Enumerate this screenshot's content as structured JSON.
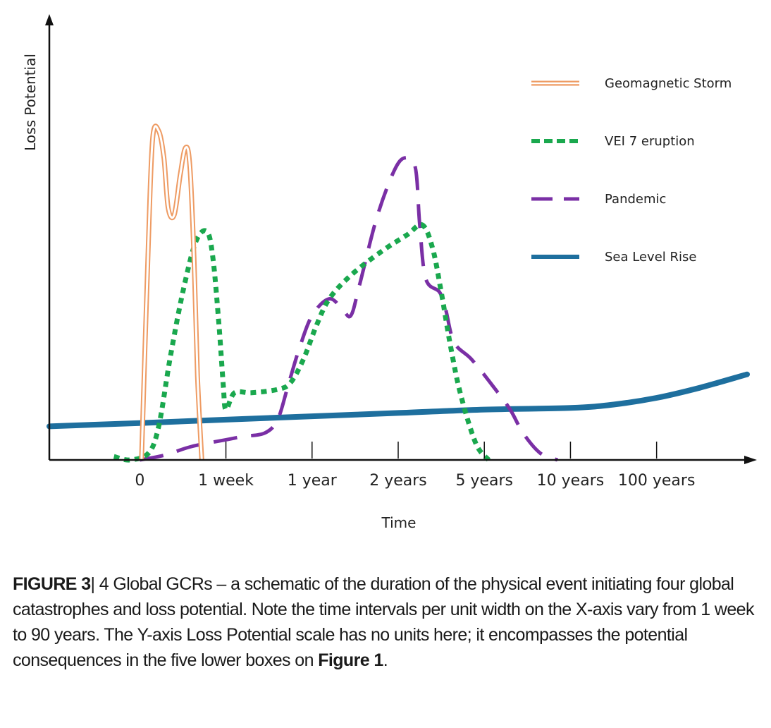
{
  "chart_data": {
    "type": "line",
    "title": "",
    "xlabel": "Time",
    "ylabel": "Loss Potential",
    "x_ticks": [
      "0",
      "1 week",
      "1 year",
      "2 years",
      "5 years",
      "10 years",
      "100 years"
    ],
    "x_range": [
      -1.05,
      7.05
    ],
    "ylim": [
      0,
      100
    ],
    "grid": false,
    "legend_position": "top-right",
    "series": [
      {
        "name": "Geomagnetic Storm",
        "style": "double-line",
        "color": "#ee9b63",
        "points": [
          [
            0.02,
            0
          ],
          [
            0.1,
            65
          ],
          [
            0.15,
            96
          ],
          [
            0.22,
            98
          ],
          [
            0.28,
            90
          ],
          [
            0.33,
            75
          ],
          [
            0.4,
            73
          ],
          [
            0.47,
            85
          ],
          [
            0.53,
            93
          ],
          [
            0.58,
            88
          ],
          [
            0.63,
            60
          ],
          [
            0.67,
            25
          ],
          [
            0.72,
            0
          ]
        ]
      },
      {
        "name": "VEI 7 eruption",
        "style": "dotted",
        "color": "#1aa84e",
        "points": [
          [
            -0.3,
            1
          ],
          [
            -0.12,
            0
          ],
          [
            0.1,
            2
          ],
          [
            0.22,
            10
          ],
          [
            0.35,
            30
          ],
          [
            0.5,
            50
          ],
          [
            0.65,
            65
          ],
          [
            0.78,
            68
          ],
          [
            0.85,
            60
          ],
          [
            0.92,
            40
          ],
          [
            0.97,
            22
          ],
          [
            1.0,
            15
          ],
          [
            1.1,
            20
          ],
          [
            1.3,
            20
          ],
          [
            1.6,
            21
          ],
          [
            1.75,
            23
          ],
          [
            1.9,
            30
          ],
          [
            2.05,
            40
          ],
          [
            2.2,
            48
          ],
          [
            2.45,
            55
          ],
          [
            2.8,
            62
          ],
          [
            3.1,
            67
          ],
          [
            3.28,
            70
          ],
          [
            3.4,
            63
          ],
          [
            3.5,
            50
          ],
          [
            3.6,
            35
          ],
          [
            3.72,
            20
          ],
          [
            3.9,
            5
          ],
          [
            4.05,
            0
          ]
        ]
      },
      {
        "name": "Pandemic",
        "style": "dashed",
        "color": "#7a2fa5",
        "points": [
          [
            0.0,
            0
          ],
          [
            0.3,
            1.5
          ],
          [
            0.6,
            4
          ],
          [
            1.0,
            6
          ],
          [
            1.2,
            7
          ],
          [
            1.45,
            8
          ],
          [
            1.6,
            12
          ],
          [
            1.72,
            22
          ],
          [
            1.85,
            33
          ],
          [
            2.0,
            43
          ],
          [
            2.2,
            48
          ],
          [
            2.35,
            45
          ],
          [
            2.45,
            43
          ],
          [
            2.55,
            52
          ],
          [
            2.75,
            72
          ],
          [
            2.95,
            86
          ],
          [
            3.08,
            90
          ],
          [
            3.2,
            87
          ],
          [
            3.25,
            70
          ],
          [
            3.32,
            54
          ],
          [
            3.48,
            50
          ],
          [
            3.55,
            45
          ],
          [
            3.65,
            35
          ],
          [
            3.85,
            30
          ],
          [
            4.1,
            22
          ],
          [
            4.3,
            15
          ],
          [
            4.45,
            8
          ],
          [
            4.65,
            2
          ],
          [
            4.85,
            0
          ]
        ]
      },
      {
        "name": "Sea Level Rise",
        "style": "solid",
        "color": "#1e6f9e",
        "points": [
          [
            -1.05,
            10
          ],
          [
            0.0,
            11
          ],
          [
            1.0,
            12
          ],
          [
            2.0,
            13
          ],
          [
            3.0,
            14
          ],
          [
            4.0,
            15
          ],
          [
            5.0,
            15.5
          ],
          [
            5.5,
            16.5
          ],
          [
            6.0,
            18.5
          ],
          [
            6.5,
            21.5
          ],
          [
            7.05,
            25.5
          ]
        ]
      }
    ]
  },
  "caption": {
    "label": "FIGURE 3",
    "separator": "|",
    "text_before_ref": " 4 Global GCRs – a schematic of the duration of the physical event initiating four global catastrophes and loss potential. Note the time intervals per unit width on the X-axis vary from 1 week to 90 years. The Y-axis Loss Potential scale has no units here; it encompasses the potential consequences in the five lower boxes on ",
    "ref": "Figure 1",
    "text_after_ref": "."
  }
}
